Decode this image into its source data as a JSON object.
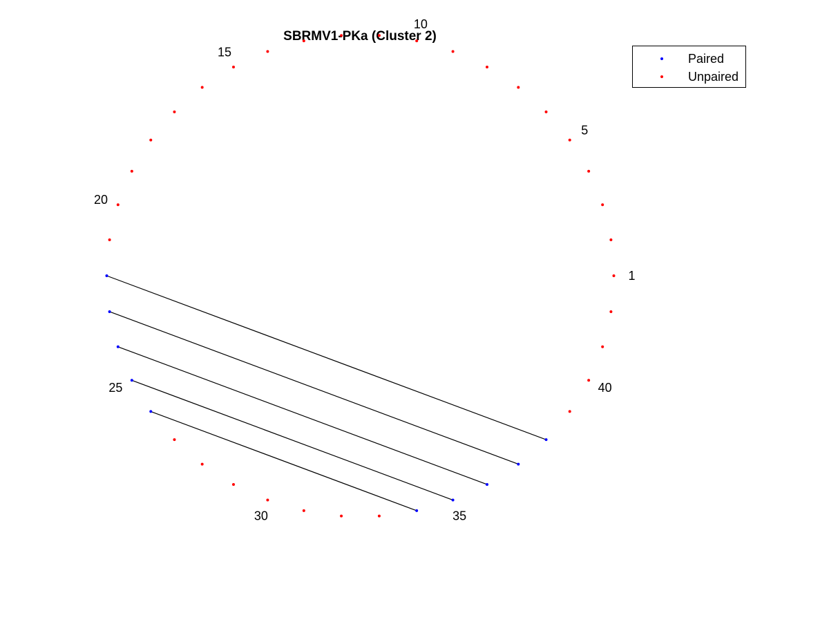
{
  "chart_data": {
    "type": "scatter",
    "title": "SBRMV1-PKa (Cluster 2)",
    "subtitle": "",
    "xlabel": "",
    "ylabel": "",
    "layout": "circular arc diagram",
    "num_positions": 42,
    "label_positions": [
      "1",
      "5",
      "10",
      "15",
      "20",
      "25",
      "30",
      "35",
      "40"
    ],
    "series": [
      {
        "name": "Paired",
        "color": "#0000ff",
        "positions": [
          22,
          23,
          24,
          25,
          26,
          34,
          35,
          36,
          37,
          38
        ]
      },
      {
        "name": "Unpaired",
        "color": "#ff0000",
        "positions": [
          1,
          2,
          3,
          4,
          5,
          6,
          7,
          8,
          9,
          10,
          11,
          12,
          13,
          14,
          15,
          16,
          17,
          18,
          19,
          20,
          21,
          27,
          28,
          29,
          30,
          31,
          32,
          33,
          39,
          40,
          41,
          42
        ]
      }
    ],
    "pairs": [
      [
        22,
        38
      ],
      [
        23,
        37
      ],
      [
        24,
        36
      ],
      [
        25,
        35
      ],
      [
        26,
        34
      ]
    ],
    "pair_line_color": "#000000",
    "legend_position": "top-right",
    "grid": false
  }
}
